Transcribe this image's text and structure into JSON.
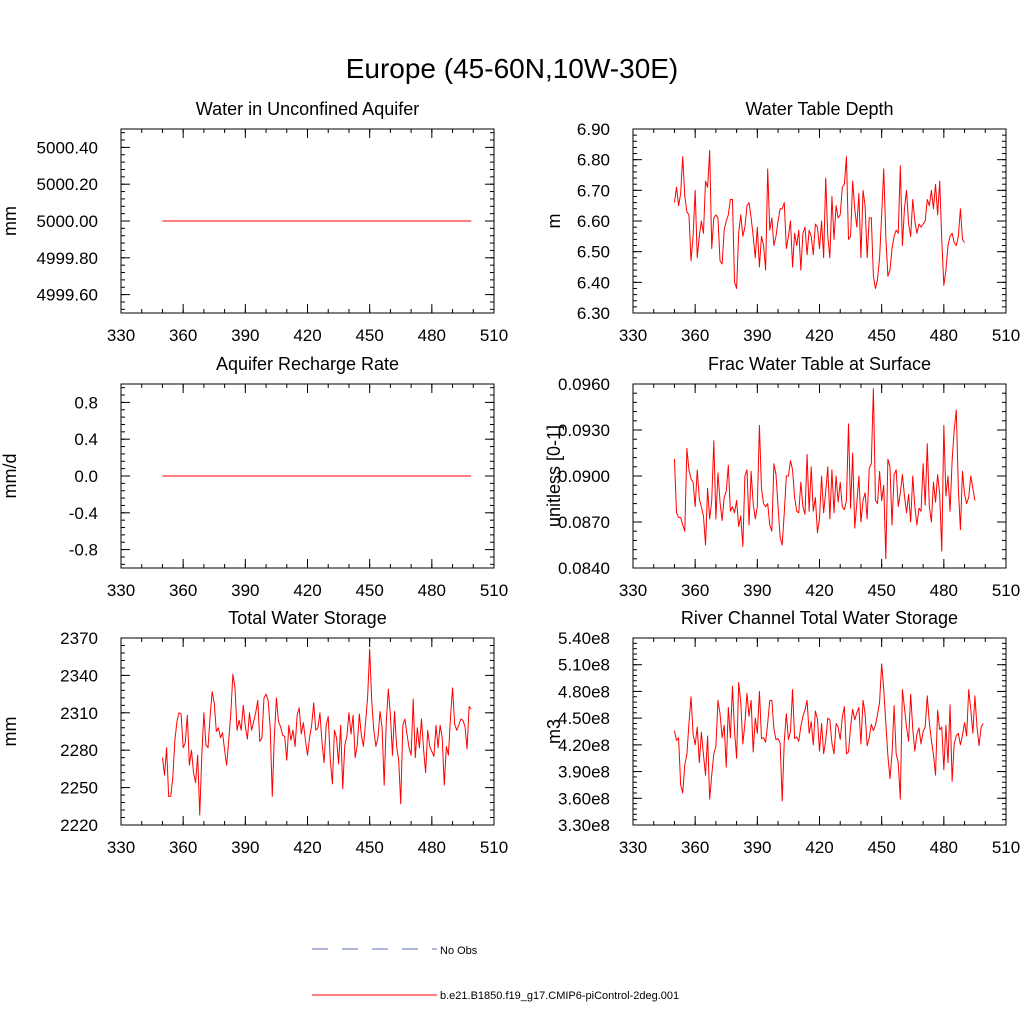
{
  "figure": {
    "title": "Europe (45-60N,10W-30E)"
  },
  "legend": {
    "entries": [
      {
        "label": "No Obs",
        "style": "dashed",
        "color": "#5b6fb0"
      },
      {
        "label": "b.e21.B1850.f19_g17.CMIP6-piControl-2deg.001",
        "style": "solid",
        "color": "#ff0000"
      }
    ]
  },
  "chart_data": [
    {
      "type": "line",
      "title": "Water in Unconfined Aquifer",
      "ylabel": "mm",
      "xlim": [
        330,
        510
      ],
      "ylim": [
        4999.5,
        5000.5
      ],
      "xticks": [
        330,
        360,
        390,
        420,
        450,
        480,
        510
      ],
      "yticks": [
        4999.6,
        4999.8,
        5000.0,
        5000.2,
        5000.4
      ],
      "ytick_labels": [
        "4999.60",
        "4999.80",
        "5000.00",
        "5000.20",
        "5000.40"
      ],
      "color": "#ff0000",
      "x_start": 350,
      "values": [
        5000,
        5000,
        5000,
        5000,
        5000,
        5000,
        5000,
        5000,
        5000,
        5000,
        5000,
        5000,
        5000,
        5000,
        5000,
        5000,
        5000,
        5000,
        5000,
        5000,
        5000,
        5000,
        5000,
        5000,
        5000,
        5000,
        5000,
        5000,
        5000,
        5000,
        5000,
        5000,
        5000,
        5000,
        5000,
        5000,
        5000,
        5000,
        5000,
        5000,
        5000,
        5000,
        5000,
        5000,
        5000,
        5000,
        5000,
        5000,
        5000,
        5000,
        5000,
        5000,
        5000,
        5000,
        5000,
        5000,
        5000,
        5000,
        5000,
        5000,
        5000,
        5000,
        5000,
        5000,
        5000,
        5000,
        5000,
        5000,
        5000,
        5000,
        5000,
        5000,
        5000,
        5000,
        5000,
        5000,
        5000,
        5000,
        5000,
        5000,
        5000,
        5000,
        5000,
        5000,
        5000,
        5000,
        5000,
        5000,
        5000,
        5000,
        5000,
        5000,
        5000,
        5000,
        5000,
        5000,
        5000,
        5000,
        5000,
        5000,
        5000,
        5000,
        5000,
        5000,
        5000,
        5000,
        5000,
        5000,
        5000,
        5000,
        5000,
        5000,
        5000,
        5000,
        5000,
        5000,
        5000,
        5000,
        5000,
        5000,
        5000,
        5000,
        5000,
        5000,
        5000,
        5000,
        5000,
        5000,
        5000,
        5000,
        5000,
        5000,
        5000,
        5000,
        5000,
        5000,
        5000,
        5000,
        5000,
        5000,
        5000,
        5000,
        5000,
        5000,
        5000,
        5000,
        5000,
        5000,
        5000,
        5000
      ]
    },
    {
      "type": "line",
      "title": "Water Table Depth",
      "ylabel": "m",
      "xlim": [
        330,
        510
      ],
      "ylim": [
        6.3,
        6.9
      ],
      "xticks": [
        330,
        360,
        390,
        420,
        450,
        480,
        510
      ],
      "yticks": [
        6.3,
        6.4,
        6.5,
        6.6,
        6.7,
        6.8,
        6.9
      ],
      "ytick_labels": [
        "6.30",
        "6.40",
        "6.50",
        "6.60",
        "6.70",
        "6.80",
        "6.90"
      ],
      "color": "#ff0000",
      "x_start": 350,
      "values": [
        6.66,
        6.71,
        6.65,
        6.69,
        6.81,
        6.68,
        6.63,
        6.62,
        6.47,
        6.55,
        6.7,
        6.48,
        6.55,
        6.6,
        6.56,
        6.73,
        6.71,
        6.83,
        6.51,
        6.61,
        6.62,
        6.61,
        6.47,
        6.46,
        6.57,
        6.6,
        6.62,
        6.67,
        6.67,
        6.4,
        6.38,
        6.56,
        6.62,
        6.55,
        6.58,
        6.65,
        6.66,
        6.61,
        6.55,
        6.48,
        6.58,
        6.45,
        6.55,
        6.52,
        6.44,
        6.77,
        6.57,
        6.61,
        6.52,
        6.55,
        6.6,
        6.64,
        6.64,
        6.66,
        6.51,
        6.55,
        6.6,
        6.45,
        6.56,
        6.52,
        6.57,
        6.44,
        6.56,
        6.58,
        6.49,
        6.57,
        6.55,
        6.49,
        6.59,
        6.58,
        6.51,
        6.6,
        6.48,
        6.74,
        6.55,
        6.48,
        6.68,
        6.54,
        6.65,
        6.61,
        6.62,
        6.71,
        6.72,
        6.81,
        6.54,
        6.55,
        6.73,
        6.64,
        6.58,
        6.69,
        6.48,
        6.7,
        6.65,
        6.48,
        6.61,
        6.61,
        6.42,
        6.38,
        6.41,
        6.48,
        6.62,
        6.77,
        6.55,
        6.42,
        6.44,
        6.51,
        6.55,
        6.57,
        6.56,
        6.78,
        6.52,
        6.64,
        6.7,
        6.59,
        6.55,
        6.67,
        6.6,
        6.56,
        6.59,
        6.58,
        6.59,
        6.6,
        6.67,
        6.65,
        6.7,
        6.64,
        6.72,
        6.62,
        6.73,
        6.54,
        6.39,
        6.44,
        6.52,
        6.55,
        6.56,
        6.53,
        6.52,
        6.55,
        6.64,
        6.54,
        6.53
      ]
    },
    {
      "type": "line",
      "title": "Aquifer Recharge Rate",
      "ylabel": "mm/d",
      "xlim": [
        330,
        510
      ],
      "ylim": [
        -1.0,
        1.0
      ],
      "xticks": [
        330,
        360,
        390,
        420,
        450,
        480,
        510
      ],
      "yticks": [
        -0.8,
        -0.4,
        0.0,
        0.4,
        0.8
      ],
      "ytick_labels": [
        "-0.8",
        "-0.4",
        "0.0",
        "0.4",
        "0.8"
      ],
      "color": "#ff0000",
      "x_start": 350,
      "values": [
        0,
        0,
        0,
        0,
        0,
        0,
        0,
        0,
        0,
        0,
        0,
        0,
        0,
        0,
        0,
        0,
        0,
        0,
        0,
        0,
        0,
        0,
        0,
        0,
        0,
        0,
        0,
        0,
        0,
        0,
        0,
        0,
        0,
        0,
        0,
        0,
        0,
        0,
        0,
        0,
        0,
        0,
        0,
        0,
        0,
        0,
        0,
        0,
        0,
        0,
        0,
        0,
        0,
        0,
        0,
        0,
        0,
        0,
        0,
        0,
        0,
        0,
        0,
        0,
        0,
        0,
        0,
        0,
        0,
        0,
        0,
        0,
        0,
        0,
        0,
        0,
        0,
        0,
        0,
        0,
        0,
        0,
        0,
        0,
        0,
        0,
        0,
        0,
        0,
        0,
        0,
        0,
        0,
        0,
        0,
        0,
        0,
        0,
        0,
        0,
        0,
        0,
        0,
        0,
        0,
        0,
        0,
        0,
        0,
        0,
        0,
        0,
        0,
        0,
        0,
        0,
        0,
        0,
        0,
        0,
        0,
        0,
        0,
        0,
        0,
        0,
        0,
        0,
        0,
        0,
        0,
        0,
        0,
        0,
        0,
        0,
        0,
        0,
        0,
        0,
        0,
        0,
        0,
        0,
        0,
        0,
        0,
        0,
        0,
        0
      ]
    },
    {
      "type": "line",
      "title": "Frac Water Table at Surface",
      "ylabel": "unitless [0-1]",
      "xlim": [
        330,
        510
      ],
      "ylim": [
        0.084,
        0.096
      ],
      "xticks": [
        330,
        360,
        390,
        420,
        450,
        480,
        510
      ],
      "yticks": [
        0.084,
        0.087,
        0.09,
        0.093,
        0.096
      ],
      "ytick_labels": [
        "0.0840",
        "0.0870",
        "0.0900",
        "0.0930",
        "0.0960"
      ],
      "color": "#ff0000",
      "x_start": 350,
      "values": [
        0.0911,
        0.0876,
        0.0873,
        0.0873,
        0.0868,
        0.0864,
        0.0918,
        0.0904,
        0.0898,
        0.0896,
        0.088,
        0.0904,
        0.0885,
        0.088,
        0.0874,
        0.0855,
        0.0892,
        0.0872,
        0.0884,
        0.0923,
        0.0872,
        0.0902,
        0.0883,
        0.0871,
        0.0886,
        0.089,
        0.0907,
        0.0877,
        0.088,
        0.0876,
        0.0884,
        0.0867,
        0.0874,
        0.0854,
        0.09,
        0.0904,
        0.0868,
        0.0903,
        0.0882,
        0.0872,
        0.088,
        0.0933,
        0.0892,
        0.0882,
        0.088,
        0.0882,
        0.0868,
        0.0864,
        0.0908,
        0.0901,
        0.088,
        0.086,
        0.0855,
        0.0876,
        0.09,
        0.09,
        0.091,
        0.0904,
        0.0886,
        0.0877,
        0.0876,
        0.0896,
        0.088,
        0.0875,
        0.0914,
        0.0877,
        0.0906,
        0.0877,
        0.0886,
        0.0863,
        0.0872,
        0.09,
        0.0876,
        0.089,
        0.0906,
        0.0872,
        0.0904,
        0.0876,
        0.09,
        0.0883,
        0.0896,
        0.088,
        0.0878,
        0.0884,
        0.0934,
        0.0879,
        0.0915,
        0.0866,
        0.0882,
        0.09,
        0.087,
        0.0884,
        0.0889,
        0.0872,
        0.0905,
        0.0908,
        0.0957,
        0.0884,
        0.0882,
        0.0903,
        0.0884,
        0.0894,
        0.0846,
        0.0911,
        0.0906,
        0.0868,
        0.0901,
        0.0904,
        0.088,
        0.0889,
        0.0901,
        0.0887,
        0.0876,
        0.0888,
        0.087,
        0.09,
        0.088,
        0.0868,
        0.0879,
        0.0877,
        0.0908,
        0.0881,
        0.0921,
        0.088,
        0.087,
        0.0896,
        0.0883,
        0.0901,
        0.0888,
        0.0851,
        0.0933,
        0.0887,
        0.09,
        0.0877,
        0.091,
        0.093,
        0.0943,
        0.0892,
        0.0865,
        0.0903,
        0.0888,
        0.0882,
        0.0886,
        0.09,
        0.0892,
        0.0884
      ]
    },
    {
      "type": "line",
      "title": "Total Water Storage",
      "ylabel": "mm",
      "xlim": [
        330,
        510
      ],
      "ylim": [
        2220,
        2370
      ],
      "xticks": [
        330,
        360,
        390,
        420,
        450,
        480,
        510
      ],
      "yticks": [
        2220,
        2250,
        2280,
        2310,
        2340,
        2370
      ],
      "ytick_labels": [
        "2220",
        "2250",
        "2280",
        "2310",
        "2340",
        "2370"
      ],
      "color": "#ff0000",
      "x_start": 350,
      "values": [
        2274,
        2260,
        2282,
        2243,
        2243,
        2258,
        2288,
        2303,
        2310,
        2309,
        2282,
        2286,
        2308,
        2268,
        2280,
        2262,
        2254,
        2276,
        2228,
        2276,
        2310,
        2284,
        2282,
        2307,
        2327,
        2318,
        2295,
        2298,
        2290,
        2294,
        2280,
        2268,
        2288,
        2310,
        2341,
        2330,
        2296,
        2304,
        2296,
        2316,
        2299,
        2289,
        2310,
        2296,
        2303,
        2310,
        2320,
        2287,
        2290,
        2322,
        2325,
        2320,
        2298,
        2243,
        2291,
        2322,
        2303,
        2299,
        2292,
        2291,
        2272,
        2300,
        2288,
        2296,
        2283,
        2308,
        2314,
        2293,
        2302,
        2288,
        2276,
        2290,
        2300,
        2318,
        2296,
        2298,
        2310,
        2286,
        2270,
        2300,
        2307,
        2272,
        2253,
        2296,
        2290,
        2269,
        2300,
        2249,
        2284,
        2291,
        2310,
        2293,
        2308,
        2274,
        2284,
        2309,
        2292,
        2283,
        2302,
        2322,
        2361,
        2319,
        2296,
        2283,
        2290,
        2311,
        2298,
        2252,
        2302,
        2329,
        2308,
        2276,
        2311,
        2283,
        2272,
        2237,
        2300,
        2305,
        2293,
        2282,
        2276,
        2321,
        2274,
        2298,
        2282,
        2305,
        2281,
        2262,
        2296,
        2283,
        2279,
        2275,
        2300,
        2282,
        2300,
        2290,
        2252,
        2283,
        2276,
        2306,
        2330,
        2301,
        2296,
        2300,
        2305,
        2304,
        2299,
        2281,
        2315,
        2313
      ]
    },
    {
      "type": "line",
      "title": "River Channel Total Water Storage",
      "ylabel": "m3",
      "xlim": [
        330,
        510
      ],
      "ylim": [
        330000000,
        540000000
      ],
      "xticks": [
        330,
        360,
        390,
        420,
        450,
        480,
        510
      ],
      "yticks": [
        330000000,
        360000000,
        390000000,
        420000000,
        450000000,
        480000000,
        510000000,
        540000000
      ],
      "ytick_labels": [
        "3.30e8",
        "3.60e8",
        "3.90e8",
        "4.20e8",
        "4.50e8",
        "4.80e8",
        "5.10e8",
        "5.40e8"
      ],
      "color": "#ff0000",
      "x_start": 350,
      "values": [
        436000000,
        425000000,
        428000000,
        375000000,
        366000000,
        398000000,
        409000000,
        444000000,
        474000000,
        432000000,
        420000000,
        440000000,
        400000000,
        434000000,
        409000000,
        386000000,
        430000000,
        359000000,
        386000000,
        410000000,
        418000000,
        470000000,
        455000000,
        428000000,
        442000000,
        395000000,
        462000000,
        428000000,
        486000000,
        435000000,
        405000000,
        490000000,
        468000000,
        421000000,
        444000000,
        478000000,
        452000000,
        470000000,
        412000000,
        450000000,
        433000000,
        480000000,
        427000000,
        428000000,
        423000000,
        444000000,
        470000000,
        470000000,
        438000000,
        426000000,
        427000000,
        422000000,
        357000000,
        424000000,
        455000000,
        426000000,
        435000000,
        482000000,
        427000000,
        429000000,
        424000000,
        441000000,
        452000000,
        459000000,
        470000000,
        433000000,
        446000000,
        420000000,
        458000000,
        449000000,
        413000000,
        444000000,
        410000000,
        425000000,
        450000000,
        448000000,
        422000000,
        410000000,
        444000000,
        440000000,
        426000000,
        451000000,
        463000000,
        410000000,
        412000000,
        440000000,
        460000000,
        448000000,
        456000000,
        462000000,
        421000000,
        470000000,
        455000000,
        419000000,
        428000000,
        443000000,
        436000000,
        442000000,
        454000000,
        468000000,
        511000000,
        482000000,
        445000000,
        408000000,
        382000000,
        410000000,
        464000000,
        410000000,
        400000000,
        359000000,
        482000000,
        462000000,
        440000000,
        424000000,
        477000000,
        438000000,
        413000000,
        432000000,
        439000000,
        421000000,
        435000000,
        440000000,
        475000000,
        445000000,
        425000000,
        409000000,
        386000000,
        459000000,
        437000000,
        440000000,
        392000000,
        442000000,
        400000000,
        465000000,
        379000000,
        421000000,
        430000000,
        433000000,
        420000000,
        431000000,
        445000000,
        430000000,
        482000000,
        460000000,
        433000000,
        475000000,
        440000000,
        419000000,
        440000000,
        444000000
      ]
    }
  ]
}
